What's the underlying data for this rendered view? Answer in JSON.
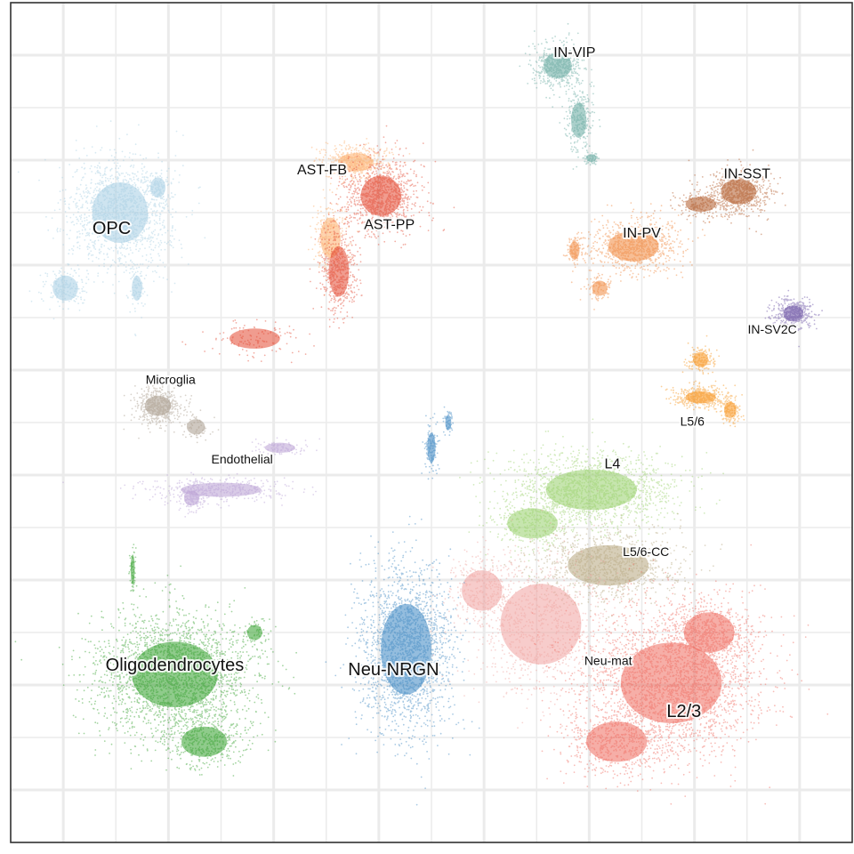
{
  "chart_data": {
    "type": "scatter",
    "title": "",
    "xlabel": "",
    "ylabel": "",
    "xlim": [
      0,
      100
    ],
    "ylim": [
      0,
      100
    ],
    "grid": true,
    "legend": "none",
    "clusters": [
      {
        "name": "OPC",
        "color": "#a6cee3",
        "center": [
          12,
          73
        ],
        "size": "large",
        "blobs": [
          [
            13,
            75,
            5.5,
            6,
            1400
          ],
          [
            6.5,
            66,
            2.5,
            2.5,
            180
          ],
          [
            15,
            66,
            1.0,
            2.5,
            80
          ],
          [
            17.5,
            78,
            1.5,
            2.0,
            100
          ]
        ]
      },
      {
        "name": "AST-FB",
        "color": "#fdae6b",
        "center": [
          37,
          80
        ],
        "size": "medium",
        "blobs": [
          [
            41,
            81,
            3.5,
            1.8,
            500
          ],
          [
            38,
            72,
            2.0,
            4.0,
            250
          ]
        ]
      },
      {
        "name": "AST-PP",
        "color": "#e34a33",
        "center": [
          45,
          73.5
        ],
        "size": "medium",
        "blobs": [
          [
            44,
            77,
            4.0,
            4.0,
            1000
          ],
          [
            39,
            68,
            2.0,
            5.0,
            500
          ],
          [
            29,
            60,
            5.0,
            2.0,
            120
          ]
        ]
      },
      {
        "name": "IN-VIP",
        "color": "#66a9a0",
        "center": [
          67,
          94
        ],
        "size": "medium",
        "blobs": [
          [
            65,
            92.5,
            2.8,
            2.5,
            500
          ],
          [
            67.5,
            86,
            1.5,
            3.5,
            250
          ],
          [
            69,
            81.5,
            1.0,
            0.8,
            60
          ]
        ]
      },
      {
        "name": "IN-SST",
        "color": "#b15928",
        "center": [
          87.5,
          79.5
        ],
        "size": "medium",
        "blobs": [
          [
            86.5,
            77.5,
            3.5,
            2.5,
            700
          ],
          [
            82,
            76,
            3.0,
            1.5,
            150
          ]
        ]
      },
      {
        "name": "IN-PV",
        "color": "#f0883e",
        "center": [
          75,
          72.5
        ],
        "size": "medium",
        "blobs": [
          [
            74,
            71,
            5.0,
            3.0,
            800
          ],
          [
            67,
            70.5,
            1.0,
            1.8,
            100
          ],
          [
            70,
            66,
            1.5,
            1.5,
            80
          ]
        ]
      },
      {
        "name": "IN-SV2C",
        "color": "#6a51a3",
        "center": [
          90.5,
          61
        ],
        "size": "small",
        "blobs": [
          [
            93,
            63,
            2.0,
            1.6,
            400
          ]
        ]
      },
      {
        "name": "Microglia",
        "color": "#a89b8c",
        "center": [
          19,
          55
        ],
        "size": "small",
        "blobs": [
          [
            17.5,
            52,
            2.6,
            2.0,
            500
          ],
          [
            22,
            49.5,
            1.8,
            1.5,
            60
          ]
        ]
      },
      {
        "name": "Endothelial",
        "color": "#b9a0d4",
        "center": [
          27.5,
          45.5
        ],
        "size": "small",
        "blobs": [
          [
            25,
            42,
            8.0,
            1.4,
            350
          ],
          [
            21.5,
            41,
            1.5,
            1.5,
            150
          ],
          [
            32,
            47,
            3.0,
            1.0,
            80
          ]
        ]
      },
      {
        "name": "L5/6",
        "color": "#f7941d",
        "center": [
          81,
          50
        ],
        "size": "small",
        "blobs": [
          [
            82,
            53,
            3.0,
            1.2,
            400
          ],
          [
            82,
            57.5,
            1.5,
            1.5,
            150
          ],
          [
            85.5,
            51.5,
            1.2,
            1.6,
            120
          ]
        ]
      },
      {
        "name": "L4",
        "color": "#98d06b",
        "center": [
          71.5,
          45
        ],
        "size": "medium",
        "blobs": [
          [
            69,
            42,
            9.0,
            4.0,
            1600
          ],
          [
            62,
            38,
            5.0,
            3.0,
            300
          ]
        ]
      },
      {
        "name": "L5/6-CC",
        "color": "#b6a67e",
        "center": [
          75.5,
          34.5
        ],
        "size": "small",
        "blobs": [
          [
            71,
            33,
            8.0,
            4.0,
            1000
          ]
        ]
      },
      {
        "name": "Neu-mat",
        "color": "#f0a3a0",
        "center": [
          71,
          21.5
        ],
        "size": "small",
        "blobs": [
          [
            63,
            26,
            8.0,
            8.0,
            900
          ],
          [
            56,
            30,
            4.0,
            4.0,
            300
          ]
        ]
      },
      {
        "name": "L2/3",
        "color": "#ef6b5f",
        "center": [
          80,
          15.5
        ],
        "size": "large",
        "blobs": [
          [
            78.5,
            19,
            10.0,
            8.0,
            2600
          ],
          [
            83,
            25,
            5.0,
            4.0,
            600
          ],
          [
            72,
            12,
            6.0,
            4.0,
            500
          ]
        ]
      },
      {
        "name": "Neu-NRGN",
        "color": "#3d87c2",
        "center": [
          45.5,
          20.5
        ],
        "size": "large",
        "blobs": [
          [
            47,
            23,
            5.0,
            9.0,
            2000
          ],
          [
            50,
            47,
            0.8,
            3.0,
            120
          ],
          [
            52,
            50,
            0.6,
            1.5,
            50
          ]
        ]
      },
      {
        "name": "Oligodendrocytes",
        "color": "#33a02c",
        "center": [
          19.5,
          21
        ],
        "size": "large",
        "blobs": [
          [
            19.5,
            20,
            8.5,
            6.5,
            2400
          ],
          [
            23,
            12,
            4.5,
            3.0,
            400
          ],
          [
            14.5,
            32.5,
            0.4,
            3.0,
            60
          ],
          [
            29,
            25,
            1.5,
            1.5,
            50
          ]
        ]
      }
    ]
  }
}
